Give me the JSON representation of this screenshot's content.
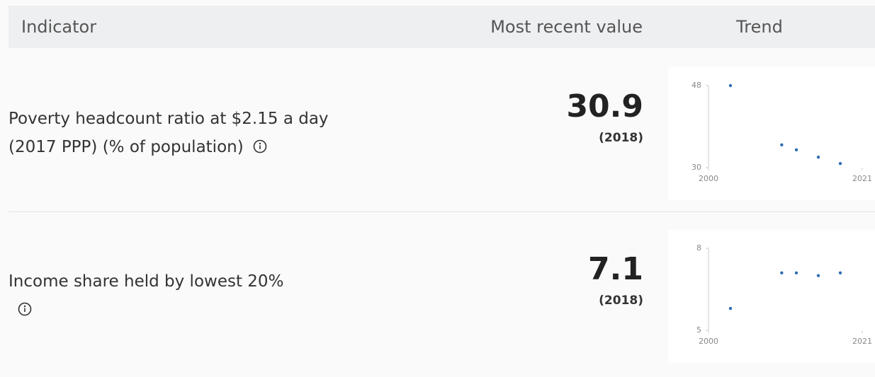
{
  "table": {
    "headers": [
      "Indicator",
      "Most recent value",
      "Trend"
    ],
    "rows": [
      {
        "indicator": "Poverty headcount ratio at $2.15 a day (2017 PPP) (% of population)",
        "value": 30.9,
        "year": "(2018)",
        "trend": {
          "type": "scatter",
          "x": [
            2003,
            2010,
            2012,
            2015,
            2018
          ],
          "values": [
            48,
            35,
            33.9,
            32.3,
            30.9
          ],
          "xlim": [
            2000,
            2021
          ],
          "ylim": [
            30,
            48
          ],
          "xticks": [
            2000,
            2021
          ],
          "yticks": [
            30,
            48
          ],
          "color": "#2f6db5"
        }
      },
      {
        "indicator": "Income share held by lowest 20%",
        "value": 7.1,
        "year": "(2018)",
        "trend": {
          "type": "scatter",
          "x": [
            2003,
            2010,
            2012,
            2015,
            2018
          ],
          "values": [
            5.8,
            7.1,
            7.1,
            7.0,
            7.1
          ],
          "xlim": [
            2000,
            2021
          ],
          "ylim": [
            5,
            8
          ],
          "xticks": [
            2000,
            2021
          ],
          "yticks": [
            5,
            8
          ],
          "color": "#2f6db5"
        }
      }
    ]
  }
}
